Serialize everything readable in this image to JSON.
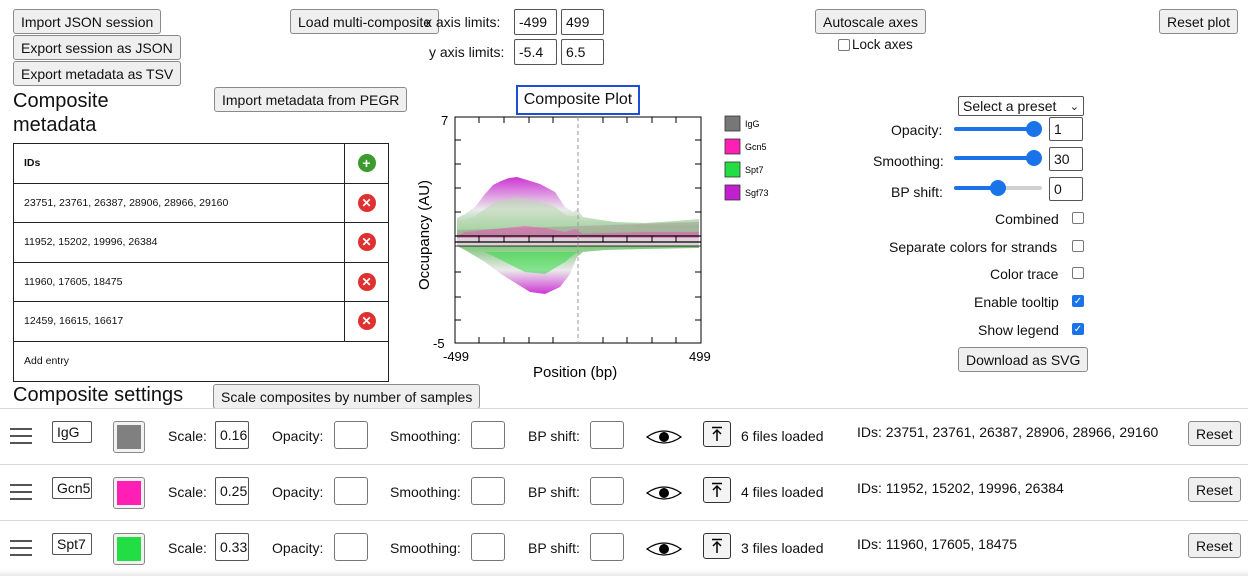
{
  "top_buttons": {
    "import_json": "Import JSON session",
    "export_json": "Export session as JSON",
    "export_tsv": "Export metadata as TSV",
    "load_multi": "Load multi-composite",
    "autoscale": "Autoscale axes",
    "lock_axes": "Lock axes",
    "reset_plot": "Reset plot",
    "import_pegr": "Import metadata from PEGR"
  },
  "axes": {
    "x_label": "x axis limits:",
    "x_min": "-499",
    "x_max": "499",
    "y_label": "y axis limits:",
    "y_min": "-5.4",
    "y_max": "6.5"
  },
  "metadata": {
    "title_line1": "Composite",
    "title_line2": "metadata",
    "header": "IDs",
    "rows": [
      "23751, 23761, 26387, 28906, 28966, 29160",
      "11952, 15202, 19996, 26384",
      "11960, 17605, 18475",
      "12459, 16615, 16617"
    ],
    "add_entry": "Add entry"
  },
  "plot": {
    "title": "Composite Plot",
    "xlabel": "Position (bp)",
    "ylabel": "Occupancy (AU)",
    "ytick_top": "7",
    "ytick_bottom": "-5",
    "xtick_left": "-499",
    "xtick_right": "499",
    "legend": [
      {
        "name": "IgG",
        "color": "#777777"
      },
      {
        "name": "Gcn5",
        "color": "#ff1fb4"
      },
      {
        "name": "Spt7",
        "color": "#22dd44"
      },
      {
        "name": "Sgf73",
        "color": "#c020d0"
      }
    ]
  },
  "chart_data": {
    "type": "area",
    "title": "Composite Plot",
    "xlabel": "Position (bp)",
    "ylabel": "Occupancy (AU)",
    "xlim": [
      -499,
      499
    ],
    "ylim": [
      -5,
      7
    ],
    "series": [
      {
        "name": "IgG",
        "color": "#777777"
      },
      {
        "name": "Gcn5",
        "color": "#ff1fb4"
      },
      {
        "name": "Spt7",
        "color": "#22dd44"
      },
      {
        "name": "Sgf73",
        "color": "#c020d0"
      }
    ]
  },
  "controls": {
    "preset": "Select a preset",
    "opacity_label": "Opacity:",
    "opacity_value": "1",
    "smoothing_label": "Smoothing:",
    "smoothing_value": "30",
    "bpshift_label": "BP shift:",
    "bpshift_value": "0",
    "combined": "Combined",
    "separate_colors": "Separate colors for strands",
    "color_trace": "Color trace",
    "enable_tooltip": "Enable tooltip",
    "show_legend": "Show legend",
    "download_svg": "Download as SVG"
  },
  "settings": {
    "title": "Composite settings",
    "scale_button": "Scale composites by number of samples",
    "labels": {
      "scale": "Scale:",
      "opacity": "Opacity:",
      "smoothing": "Smoothing:",
      "bpshift": "BP shift:",
      "reset": "Reset"
    },
    "rows": [
      {
        "name": "IgG",
        "color": "#808080",
        "scale": "0.166",
        "files": "6 files loaded",
        "ids": "IDs: 23751, 23761, 26387, 28906, 28966, 29160"
      },
      {
        "name": "Gcn5",
        "color": "#ff1fb4",
        "scale": "0.25",
        "files": "4 files loaded",
        "ids": "IDs: 11952, 15202, 19996, 26384"
      },
      {
        "name": "Spt7",
        "color": "#22dd44",
        "scale": "0.33",
        "files": "3 files loaded",
        "ids": "IDs: 11960, 17605, 18475"
      }
    ]
  }
}
